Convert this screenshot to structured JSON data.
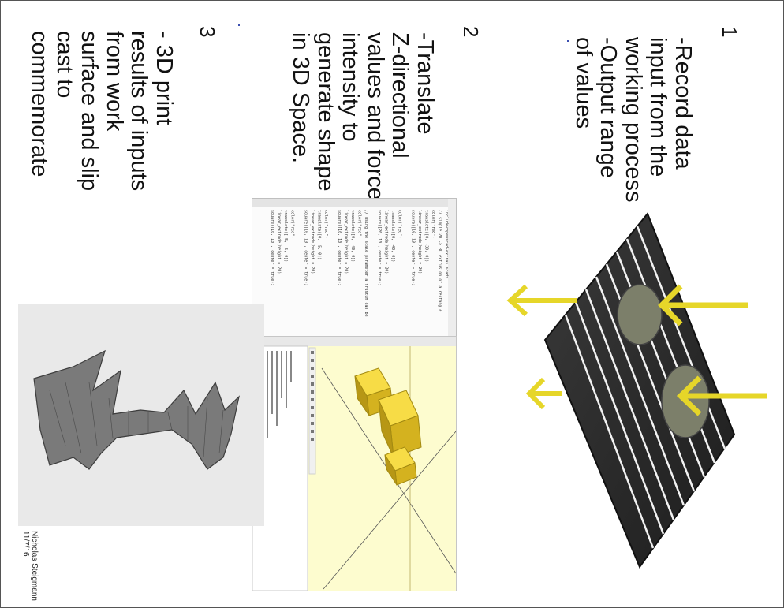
{
  "page": {
    "steps": [
      {
        "number": "1",
        "lines": [
          "-Record data",
          "input from the",
          "working process",
          "-Output range",
          "of values"
        ]
      },
      {
        "number": "2",
        "lines": [
          "-Translate",
          "Z-directional",
          "values and force",
          "intensity to",
          "generate shape",
          "in 3D Space."
        ]
      },
      {
        "number": "3",
        "lines": [
          "- 3D print",
          "results of inputs",
          "from work",
          "surface and slip",
          "cast to",
          "commemorate"
        ]
      }
    ],
    "signature": {
      "name": "Nicholas Steigmann",
      "date": "11/7/16"
    }
  },
  "figures": {
    "board_icon": "board-with-force-arrows",
    "arrow_color": "#e6d629",
    "code_editor": {
      "lines": [
        "include<openscad-extras.scad>",
        "// simple 2D -> 3D extrusion of a rectangle",
        "color(\"red\")",
        "translate([0, -30, 0])",
        "linear_extrude(height = 20)",
        "square([10, 10], center = true);",
        "",
        "color(\"red\")",
        "translate([0, -40, 0])",
        "linear_extrude(height = 20)",
        "square([20, 10], center = true);",
        "",
        "// using the scale parameter a frustum can be",
        "color(\"red\")",
        "translate([0, -40, 0])",
        "linear_extrude(height = 20)",
        "square([10, 10], center = true);",
        "",
        "color(\"red\")",
        "translate([0, -5, 0])",
        "linear_extrude(height = 20)",
        "square([10, 10], center = true);",
        "",
        "color(\"red\")",
        "translate([-5, -5, 0])",
        "linear_extrude(height = 20)",
        "square([10, 10], center = true);"
      ]
    },
    "viewport_color": "#fdfccf",
    "shape_color": "#f4d02a",
    "render_color": "#7a7a7a"
  }
}
